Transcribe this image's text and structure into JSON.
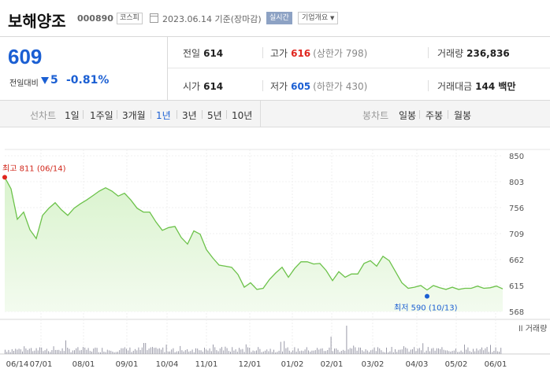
{
  "header": {
    "stock_name": "보해양조",
    "stock_code": "000890",
    "market": "코스피",
    "date": "2023.06.14 기준(장마감)",
    "realtime": "실시간",
    "company_info": "기업개요"
  },
  "price": {
    "current": "609",
    "change_label": "전일대비",
    "change": "5",
    "change_pct": "-0.81%"
  },
  "stats": {
    "prev_label": "전일",
    "prev": "614",
    "high_label": "고가",
    "high": "616",
    "upper_limit": "(상한가 798)",
    "volume_label": "거래량",
    "volume": "236,836",
    "open_label": "시가",
    "open": "614",
    "low_label": "저가",
    "low": "605",
    "lower_limit": "(하한가 430)",
    "amount_label": "거래대금",
    "amount": "144 백만"
  },
  "tabs": {
    "line_label": "선차트",
    "line": [
      "1일",
      "1주일",
      "3개월",
      "1년",
      "3년",
      "5년",
      "10년"
    ],
    "active": "1년",
    "candle_label": "봉차트",
    "candle": [
      "일봉",
      "주봉",
      "월봉"
    ]
  },
  "colors": {
    "up": "#e0261f",
    "down": "#1b5fd3",
    "line": "#6cc24a",
    "fill": "#d9f3cd"
  },
  "chart_data": {
    "type": "area",
    "y_ticks": [
      "850",
      "803",
      "756",
      "709",
      "662",
      "615",
      "568"
    ],
    "ylim": [
      568,
      850
    ],
    "x_labels": [
      "06/14",
      "07/01",
      "08/01",
      "09/01",
      "10/04",
      "11/01",
      "12/01",
      "01/02",
      "02/01",
      "03/02",
      "04/03",
      "05/02",
      "06/01"
    ],
    "high_annotation": "최고 811 (06/14)",
    "low_annotation": "최저 590 (10/13)",
    "volume_label": "거래량",
    "x": [
      "06/14",
      "06/17",
      "06/21",
      "06/23",
      "06/27",
      "07/01",
      "07/04",
      "07/06",
      "07/08",
      "07/12",
      "07/14",
      "07/18",
      "07/20",
      "07/22",
      "07/26",
      "07/28",
      "08/01",
      "08/03",
      "08/05",
      "08/09",
      "08/11",
      "08/16",
      "08/18",
      "08/22",
      "08/24",
      "08/26",
      "08/30",
      "09/01",
      "09/05",
      "09/07",
      "09/14",
      "09/16",
      "09/20",
      "09/22",
      "09/26",
      "09/28",
      "09/30",
      "10/04",
      "10/06",
      "10/11",
      "10/13",
      "10/17",
      "10/19",
      "10/21",
      "10/25",
      "10/27",
      "11/01",
      "11/07",
      "11/14",
      "11/21",
      "11/28",
      "12/01",
      "12/07",
      "12/14",
      "12/21",
      "12/28",
      "01/02",
      "01/09",
      "01/16",
      "01/25",
      "02/01",
      "02/08",
      "02/15",
      "02/22",
      "03/02",
      "03/09",
      "03/16",
      "03/23",
      "03/30",
      "04/03",
      "04/10",
      "04/17",
      "04/24",
      "05/02",
      "05/09",
      "05/16",
      "05/23",
      "06/01",
      "06/08",
      "06/14"
    ],
    "values": [
      811,
      790,
      735,
      748,
      716,
      700,
      742,
      755,
      765,
      752,
      742,
      755,
      763,
      770,
      778,
      786,
      792,
      786,
      777,
      782,
      770,
      755,
      748,
      748,
      730,
      715,
      720,
      722,
      702,
      690,
      714,
      708,
      680,
      665,
      652,
      650,
      648,
      635,
      612,
      620,
      608,
      610,
      626,
      638,
      648,
      630,
      646,
      658,
      658,
      654,
      655,
      642,
      624,
      640,
      630,
      636,
      636,
      655,
      660,
      650,
      668,
      660,
      640,
      620,
      610,
      612,
      615,
      607,
      615,
      611,
      608,
      612,
      608,
      610,
      610,
      614,
      610,
      611,
      614,
      609
    ]
  }
}
